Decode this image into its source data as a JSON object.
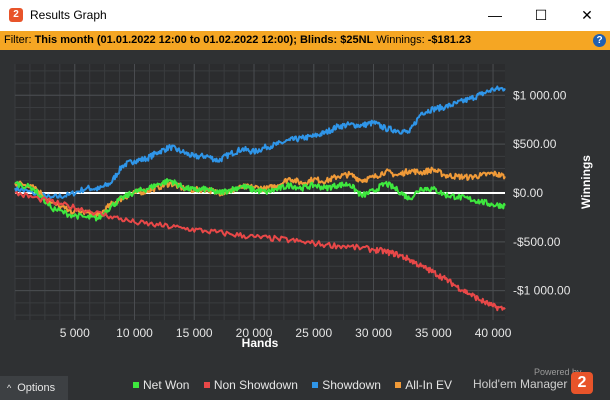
{
  "window": {
    "title": "Results Graph",
    "app_icon_glyph": "2",
    "minimize_glyph": "—",
    "maximize_glyph": "☐",
    "close_glyph": "✕"
  },
  "filter": {
    "label": "Filter:",
    "period": "This month (01.01.2022 12:00 to 01.02.2022 12:00);",
    "blinds_label": "Blinds:",
    "blinds_value": "$25NL",
    "winnings_label": "Winnings:",
    "winnings_value": "-$181.23",
    "help_glyph": "?"
  },
  "options": {
    "label": "Options",
    "chevron": "^"
  },
  "legend": [
    {
      "label": "Net Won",
      "color": "#3ee83e"
    },
    {
      "label": "Non Showdown",
      "color": "#e84848"
    },
    {
      "label": "Showdown",
      "color": "#2f95e8"
    },
    {
      "label": "All-In EV",
      "color": "#f09a38"
    }
  ],
  "branding": {
    "powered_by": "Powered by",
    "name": "Hold'em Manager",
    "logo_glyph": "2"
  },
  "chart_data": {
    "type": "line",
    "xlabel": "Hands",
    "ylabel": "Winnings",
    "xlim": [
      0,
      41000
    ],
    "ylim": [
      -1300,
      1320
    ],
    "x_ticks": [
      5000,
      10000,
      15000,
      20000,
      25000,
      30000,
      35000,
      40000
    ],
    "x_tick_labels": [
      "5 000",
      "10 000",
      "15 000",
      "20 000",
      "25 000",
      "30 000",
      "35 000",
      "40 000"
    ],
    "y_ticks": [
      1000,
      500,
      0,
      -500,
      -1000
    ],
    "y_tick_labels": [
      "$1 000.00",
      "$500.00",
      "$0.00",
      "-$500.00",
      "-$1 000.00"
    ],
    "grid": true,
    "axis_side": "right",
    "legend_position": "bottom",
    "series": [
      {
        "name": "Showdown",
        "color": "#2f95e8",
        "x": [
          0,
          1500,
          3000,
          4500,
          6000,
          7000,
          8000,
          9000,
          10000,
          11000,
          12000,
          13000,
          14000,
          15000,
          16000,
          17000,
          18000,
          19000,
          20000,
          21000,
          22000,
          23000,
          24000,
          25000,
          26000,
          27000,
          28000,
          29000,
          30000,
          31000,
          32000,
          33000,
          34000,
          35000,
          36000,
          37000,
          38000,
          39000,
          40000,
          41000
        ],
        "y": [
          50,
          0,
          -50,
          -20,
          50,
          40,
          100,
          280,
          330,
          350,
          420,
          470,
          420,
          370,
          380,
          330,
          400,
          450,
          420,
          470,
          500,
          540,
          560,
          580,
          620,
          680,
          700,
          690,
          720,
          660,
          640,
          620,
          820,
          860,
          880,
          920,
          960,
          1010,
          1060,
          1070
        ]
      },
      {
        "name": "All-In EV",
        "color": "#f09a38",
        "x": [
          0,
          1500,
          3000,
          4500,
          6000,
          7000,
          8000,
          9000,
          10000,
          11000,
          12000,
          13000,
          14000,
          15000,
          16000,
          17000,
          18000,
          19000,
          20000,
          21000,
          22000,
          23000,
          24000,
          25000,
          26000,
          27000,
          28000,
          29000,
          30000,
          31000,
          32000,
          33000,
          34000,
          35000,
          36000,
          37000,
          38000,
          39000,
          40000,
          41000
        ],
        "y": [
          100,
          80,
          -100,
          -180,
          -200,
          -230,
          -120,
          -50,
          0,
          20,
          60,
          100,
          50,
          30,
          40,
          0,
          20,
          60,
          60,
          40,
          80,
          150,
          100,
          140,
          120,
          170,
          190,
          130,
          160,
          220,
          180,
          230,
          210,
          240,
          180,
          170,
          160,
          180,
          200,
          170
        ]
      },
      {
        "name": "Net Won",
        "color": "#3ee83e",
        "x": [
          0,
          1500,
          3000,
          4500,
          6000,
          7000,
          8000,
          9000,
          10000,
          11000,
          12000,
          13000,
          14000,
          15000,
          16000,
          17000,
          18000,
          19000,
          20000,
          21000,
          22000,
          23000,
          24000,
          25000,
          26000,
          27000,
          28000,
          29000,
          30000,
          31000,
          32000,
          33000,
          34000,
          35000,
          36000,
          37000,
          38000,
          39000,
          40000,
          41000
        ],
        "y": [
          100,
          50,
          -150,
          -220,
          -250,
          -260,
          -140,
          -50,
          10,
          40,
          90,
          130,
          60,
          30,
          40,
          0,
          30,
          70,
          30,
          10,
          40,
          80,
          50,
          80,
          50,
          80,
          90,
          -30,
          20,
          100,
          30,
          -60,
          50,
          40,
          -20,
          -40,
          -60,
          -90,
          -120,
          -130
        ]
      },
      {
        "name": "Non Showdown",
        "color": "#e84848",
        "x": [
          0,
          2000,
          4000,
          6000,
          8000,
          10000,
          12000,
          14000,
          16000,
          18000,
          20000,
          22000,
          24000,
          26000,
          28000,
          30000,
          31000,
          32000,
          33000,
          34000,
          35000,
          36000,
          37000,
          38000,
          39000,
          40000,
          41000
        ],
        "y": [
          0,
          -60,
          -120,
          -180,
          -240,
          -300,
          -330,
          -360,
          -390,
          -420,
          -450,
          -470,
          -500,
          -530,
          -550,
          -580,
          -600,
          -630,
          -680,
          -750,
          -810,
          -880,
          -960,
          -1030,
          -1100,
          -1160,
          -1190
        ]
      }
    ]
  }
}
